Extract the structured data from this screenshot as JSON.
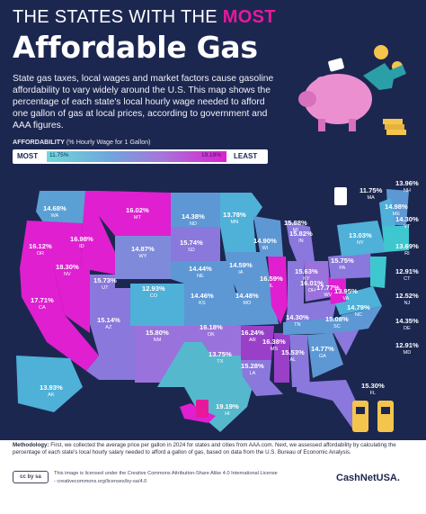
{
  "title": {
    "line1_prefix": "THE STATES WITH THE",
    "line1_highlight": "MOST",
    "line2": "Affordable Gas"
  },
  "intro": "State gas taxes, local wages and market factors cause gasoline affordability to vary widely around the U.S. This map shows the percentage of each state's local hourly wage needed to afford one gallon of gas at local prices, according to government and AAA figures.",
  "legend": {
    "title_bold": "AFFORDABILITY",
    "title_rest": "(% Hourly Wage for 1 Gallon)",
    "most": "MOST",
    "least": "LEAST",
    "min": "11.75%",
    "max": "19.19%"
  },
  "colors": {
    "background": "#1c2750",
    "accent": "#e8189b",
    "scale_low": "#6fd9da",
    "scale_mid": "#8a8fdb",
    "scale_high": "#df1fd0"
  },
  "icons": [
    "piggy-bank-icon",
    "gas-pump-icon",
    "coin-icon",
    "dollar-sign-icon",
    "gas-station-icon"
  ],
  "map_data": {
    "type": "choropleth",
    "unit": "% hourly wage for 1 gallon",
    "states": [
      {
        "abbr": "WA",
        "value": "14.68%"
      },
      {
        "abbr": "OR",
        "value": "16.12%"
      },
      {
        "abbr": "CA",
        "value": "17.71%"
      },
      {
        "abbr": "NV",
        "value": "18.30%"
      },
      {
        "abbr": "ID",
        "value": "16.98%"
      },
      {
        "abbr": "MT",
        "value": "16.02%"
      },
      {
        "abbr": "WY",
        "value": "14.87%"
      },
      {
        "abbr": "UT",
        "value": "15.73%"
      },
      {
        "abbr": "AZ",
        "value": "15.14%"
      },
      {
        "abbr": "CO",
        "value": "12.93%"
      },
      {
        "abbr": "NM",
        "value": "15.80%"
      },
      {
        "abbr": "ND",
        "value": "14.38%"
      },
      {
        "abbr": "SD",
        "value": "15.74%"
      },
      {
        "abbr": "NE",
        "value": "14.44%"
      },
      {
        "abbr": "KS",
        "value": "14.46%"
      },
      {
        "abbr": "OK",
        "value": "16.18%"
      },
      {
        "abbr": "TX",
        "value": "13.75%"
      },
      {
        "abbr": "MN",
        "value": "13.78%"
      },
      {
        "abbr": "IA",
        "value": "14.59%"
      },
      {
        "abbr": "MO",
        "value": "14.48%"
      },
      {
        "abbr": "AR",
        "value": "16.24%"
      },
      {
        "abbr": "LA",
        "value": "15.28%"
      },
      {
        "abbr": "WI",
        "value": "14.90%"
      },
      {
        "abbr": "IL",
        "value": "16.59%"
      },
      {
        "abbr": "MS",
        "value": "16.38%"
      },
      {
        "abbr": "MI",
        "value": "15.88%"
      },
      {
        "abbr": "IN",
        "value": "15.82%"
      },
      {
        "abbr": "KY",
        "value": "15.63%"
      },
      {
        "abbr": "TN",
        "value": "14.30%"
      },
      {
        "abbr": "AL",
        "value": "15.53%"
      },
      {
        "abbr": "OH",
        "value": "16.01%"
      },
      {
        "abbr": "GA",
        "value": "14.77%"
      },
      {
        "abbr": "FL",
        "value": "15.30%"
      },
      {
        "abbr": "SC",
        "value": "15.08%"
      },
      {
        "abbr": "NC",
        "value": "14.79%"
      },
      {
        "abbr": "VA",
        "value": "13.95%"
      },
      {
        "abbr": "WV",
        "value": "17.77%"
      },
      {
        "abbr": "PA",
        "value": "15.75%"
      },
      {
        "abbr": "NY",
        "value": "13.03%"
      },
      {
        "abbr": "MA",
        "value": "11.75%"
      },
      {
        "abbr": "NH",
        "value": "13.96%"
      },
      {
        "abbr": "VT",
        "value": "14.30%"
      },
      {
        "abbr": "ME",
        "value": "14.98%"
      },
      {
        "abbr": "RI",
        "value": "13.69%"
      },
      {
        "abbr": "CT",
        "value": "12.91%"
      },
      {
        "abbr": "NJ",
        "value": "12.52%"
      },
      {
        "abbr": "DE",
        "value": "14.35%"
      },
      {
        "abbr": "MD",
        "value": "12.91%"
      },
      {
        "abbr": "AK",
        "value": "13.93%"
      },
      {
        "abbr": "HI",
        "value": "19.19%"
      }
    ]
  },
  "footer": {
    "methodology_label": "Methodology:",
    "methodology_text": "First, we collected the average price per gallon in 2024 for states and cities from AAA.com. Next, we assessed affordability by calculating the percentage of each state's local hourly salary needed to afford a gallon of gas, based on data from the U.S. Bureau of Economic Analysis.",
    "license_line1": "This image is licensed under the Creative Commons Attribution-Share Alike 4.0 International License",
    "license_line2": "- creativecommons.org/licenses/by-sa/4.0",
    "cc_badge": "cc by sa",
    "brand": "CashNetUSA."
  }
}
